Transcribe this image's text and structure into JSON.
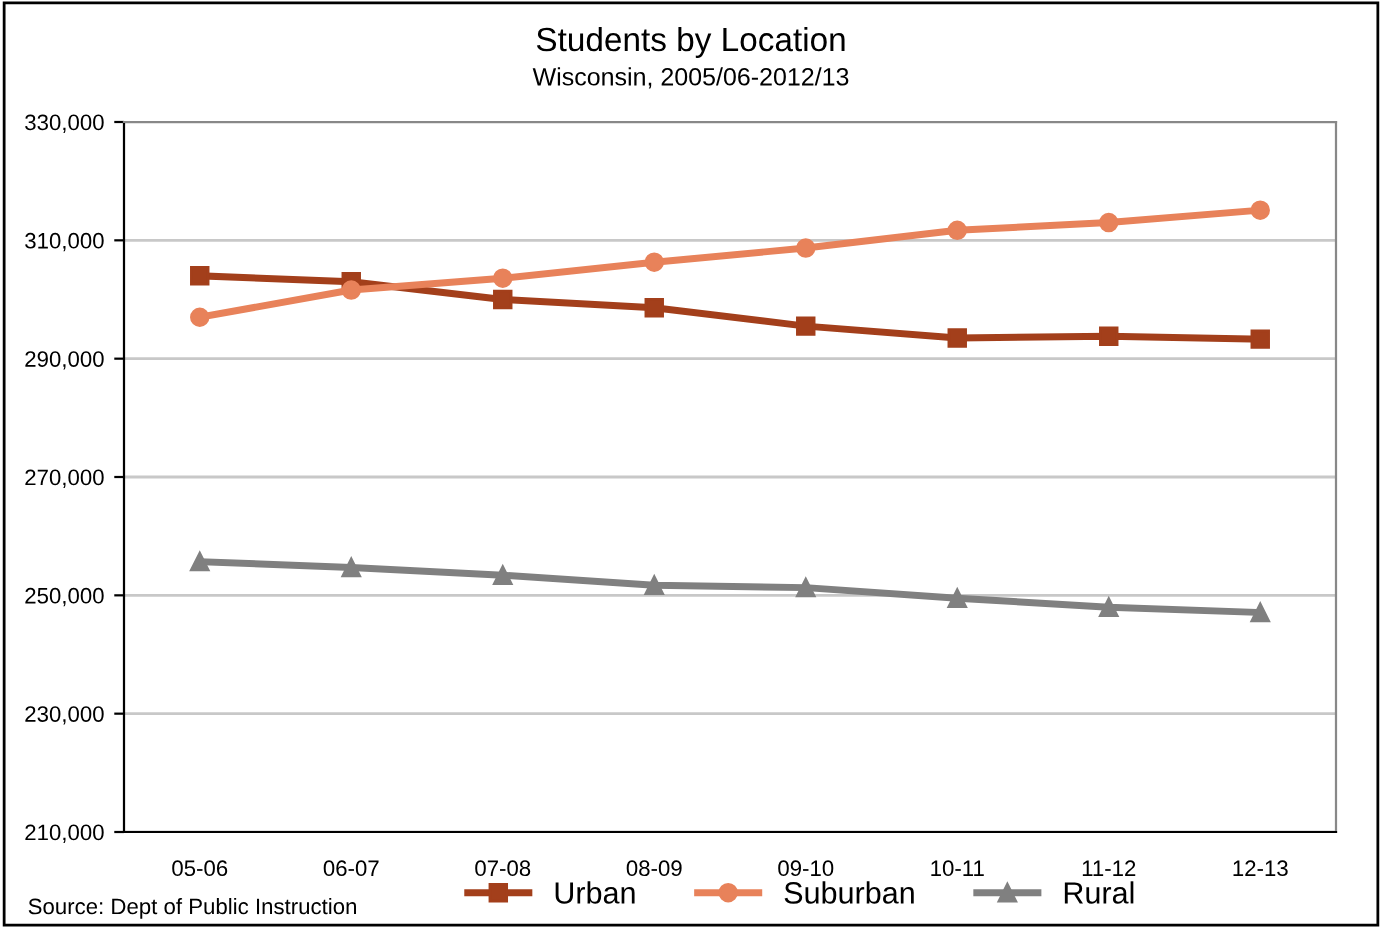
{
  "chart_data": {
    "type": "line",
    "title": "Students by Location",
    "subtitle": "Wisconsin, 2005/06-2012/13",
    "categories": [
      "05-06",
      "06-07",
      "07-08",
      "08-09",
      "09-10",
      "10-11",
      "11-12",
      "12-13"
    ],
    "series": [
      {
        "name": "Urban",
        "color": "#a33f1b",
        "marker": "square",
        "values": [
          304000,
          303000,
          300000,
          298600,
          295500,
          293500,
          293800,
          293300
        ]
      },
      {
        "name": "Suburban",
        "color": "#e8825a",
        "marker": "circle",
        "values": [
          297000,
          301600,
          303600,
          306300,
          308700,
          311700,
          313000,
          315100
        ]
      },
      {
        "name": "Rural",
        "color": "#808080",
        "marker": "triangle",
        "values": [
          255700,
          254700,
          253400,
          251700,
          251300,
          249500,
          248000,
          247100
        ]
      }
    ],
    "ylim": [
      210000,
      330000
    ],
    "yticks": [
      {
        "value": 210000,
        "label": "210,000"
      },
      {
        "value": 230000,
        "label": "230,000"
      },
      {
        "value": 250000,
        "label": "250,000"
      },
      {
        "value": 270000,
        "label": "270,000"
      },
      {
        "value": 290000,
        "label": "290,000"
      },
      {
        "value": 310000,
        "label": "310,000"
      },
      {
        "value": 330000,
        "label": "330,000"
      }
    ],
    "grid": "y",
    "legend": "bottom",
    "line_style": "solid",
    "annotations": [
      "Source: Dept of Public Instruction"
    ]
  }
}
